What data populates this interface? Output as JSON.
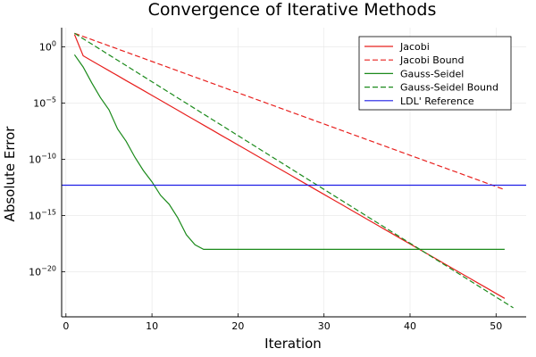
{
  "chart_data": {
    "type": "line",
    "title": "Convergence of Iterative Methods",
    "xlabel": "Iteration",
    "ylabel": "Absolute Error",
    "xlim": [
      -0.5,
      53.5
    ],
    "ylim_log10": [
      -24,
      1.7
    ],
    "y_scale": "log10",
    "x_ticks": [
      0,
      10,
      20,
      30,
      40,
      50
    ],
    "y_ticks": [
      {
        "exp": 0,
        "label": "10",
        "sup": "0"
      },
      {
        "exp": -5,
        "label": "10",
        "sup": "−5"
      },
      {
        "exp": -10,
        "label": "10",
        "sup": "−10"
      },
      {
        "exp": -15,
        "label": "10",
        "sup": "−15"
      },
      {
        "exp": -20,
        "label": "10",
        "sup": "−20"
      }
    ],
    "grid": true,
    "legend_position": "top-right",
    "series": [
      {
        "name": "Jacobi",
        "color": "#e8201e",
        "dash": "solid",
        "x": [
          1,
          2,
          3,
          4,
          5,
          6,
          7,
          8,
          9,
          10,
          11,
          12,
          13,
          14,
          15,
          16,
          17,
          18,
          19,
          20,
          21,
          22,
          23,
          24,
          25,
          26,
          27,
          28,
          29,
          30,
          31,
          32,
          33,
          34,
          35,
          36,
          37,
          38,
          39,
          40,
          41,
          42,
          43,
          44,
          45,
          46,
          47,
          48,
          49,
          50,
          51
        ],
        "log10_y": [
          1.1,
          -0.8,
          -1.24,
          -1.68,
          -2.12,
          -2.56,
          -3.0,
          -3.44,
          -3.88,
          -4.32,
          -4.76,
          -5.2,
          -5.64,
          -6.08,
          -6.52,
          -6.96,
          -7.4,
          -7.84,
          -8.28,
          -8.72,
          -9.16,
          -9.6,
          -10.04,
          -10.48,
          -10.92,
          -11.36,
          -11.8,
          -12.24,
          -12.68,
          -13.12,
          -13.56,
          -14.0,
          -14.44,
          -14.88,
          -15.32,
          -15.76,
          -16.2,
          -16.64,
          -17.08,
          -17.52,
          -17.96,
          -18.4,
          -18.84,
          -19.28,
          -19.72,
          -20.16,
          -20.6,
          -21.04,
          -21.48,
          -21.92,
          -22.36
        ]
      },
      {
        "name": "Jacobi Bound",
        "color": "#e8201e",
        "dash": "dashed",
        "x": [
          1,
          51
        ],
        "log10_y": [
          1.2,
          -12.7
        ]
      },
      {
        "name": "Gauss-Seidel",
        "color": "#1b8a1b",
        "dash": "solid",
        "x": [
          1,
          2,
          3,
          4,
          5,
          6,
          7,
          8,
          9,
          10,
          11,
          12,
          13,
          14,
          15,
          16,
          17,
          18,
          19,
          20,
          25,
          30,
          35,
          40,
          45,
          50,
          51
        ],
        "log10_y": [
          -0.7,
          -1.8,
          -3.2,
          -4.5,
          -5.6,
          -7.3,
          -8.4,
          -9.8,
          -11.0,
          -12.0,
          -13.2,
          -14.0,
          -15.2,
          -16.7,
          -17.6,
          -18.0,
          -18.0,
          -18.0,
          -18.0,
          -18.0,
          -18.0,
          -18.0,
          -18.0,
          -18.0,
          -18.0,
          -18.0,
          -18.0
        ]
      },
      {
        "name": "Gauss-Seidel Bound",
        "color": "#1b8a1b",
        "dash": "dashed",
        "x": [
          1,
          52
        ],
        "log10_y": [
          1.2,
          -23.2
        ]
      },
      {
        "name": "LDL' Reference",
        "color": "#1f1fe6",
        "dash": "solid",
        "x": [
          -0.5,
          53.5
        ],
        "log10_y": [
          -12.3,
          -12.3
        ]
      }
    ]
  }
}
